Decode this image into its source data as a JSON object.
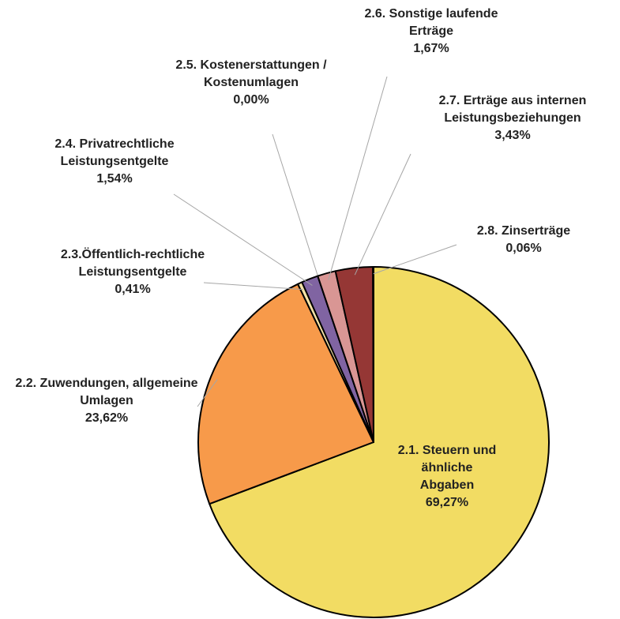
{
  "chart_data": {
    "type": "pie",
    "categories": [
      "2.1. Steuern und ähnliche Abgaben",
      "2.2. Zuwendungen, allgemeine Umlagen",
      "2.3.Öffentlich-rechtliche Leistungsentgelte",
      "2.4. Privatrechtliche Leistungsentgelte",
      "2.5. Kostenerstattungen / Kostenumlagen",
      "2.6. Sonstige laufende Erträge",
      "2.7. Erträge aus internen Leistungsbeziehungen",
      "2.8. Zinserträge"
    ],
    "values": [
      69.27,
      23.62,
      0.41,
      1.54,
      0.0,
      1.67,
      3.43,
      0.06
    ],
    "value_labels": [
      "69,27%",
      "23,62%",
      "0,41%",
      "1,54%",
      "0,00%",
      "1,67%",
      "3,43%",
      "0,06%"
    ],
    "colors": [
      "#f2dc63",
      "#f79a4a",
      "#f6e3a6",
      "#8064a2",
      "#4bacc6",
      "#d99694",
      "#953735",
      "#c0504d"
    ]
  }
}
